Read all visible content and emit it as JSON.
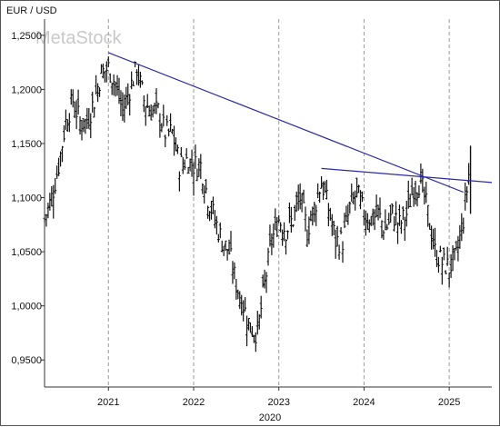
{
  "chart_data": {
    "type": "line",
    "title": "EUR / USD",
    "watermark": "MetaStock",
    "xlabel": "2020",
    "x_ticks": [
      "2021",
      "2022",
      "2023",
      "2024",
      "2025"
    ],
    "y_ticks": [
      "1,2500",
      "1,2000",
      "1,1500",
      "1,1000",
      "1,0500",
      "1,0000",
      "0,9500"
    ],
    "ylim": [
      0.925,
      1.265
    ],
    "xlim": [
      "2020-04",
      "2025-07"
    ],
    "y_grid": false,
    "x_grid": "dashed",
    "series": [
      {
        "style": "ohlc-bars",
        "color": "#111111",
        "values": [
          {
            "x": "2020-04",
            "y": 1.08
          },
          {
            "x": "2020-05",
            "y": 1.1
          },
          {
            "x": "2020-06",
            "y": 1.13
          },
          {
            "x": "2020-07",
            "y": 1.17
          },
          {
            "x": "2020-08",
            "y": 1.19
          },
          {
            "x": "2020-09",
            "y": 1.17
          },
          {
            "x": "2020-10",
            "y": 1.17
          },
          {
            "x": "2020-11",
            "y": 1.19
          },
          {
            "x": "2020-12",
            "y": 1.215
          },
          {
            "x": "2021-01",
            "y": 1.22
          },
          {
            "x": "2021-02",
            "y": 1.205
          },
          {
            "x": "2021-03",
            "y": 1.18
          },
          {
            "x": "2021-04",
            "y": 1.2
          },
          {
            "x": "2021-05",
            "y": 1.22
          },
          {
            "x": "2021-06",
            "y": 1.19
          },
          {
            "x": "2021-07",
            "y": 1.18
          },
          {
            "x": "2021-08",
            "y": 1.18
          },
          {
            "x": "2021-09",
            "y": 1.16
          },
          {
            "x": "2021-10",
            "y": 1.16
          },
          {
            "x": "2021-11",
            "y": 1.13
          },
          {
            "x": "2021-12",
            "y": 1.135
          },
          {
            "x": "2022-01",
            "y": 1.13
          },
          {
            "x": "2022-02",
            "y": 1.13
          },
          {
            "x": "2022-03",
            "y": 1.1
          },
          {
            "x": "2022-04",
            "y": 1.08
          },
          {
            "x": "2022-05",
            "y": 1.06
          },
          {
            "x": "2022-06",
            "y": 1.05
          },
          {
            "x": "2022-07",
            "y": 1.02
          },
          {
            "x": "2022-08",
            "y": 1.0
          },
          {
            "x": "2022-09",
            "y": 0.98
          },
          {
            "x": "2022-10",
            "y": 0.975
          },
          {
            "x": "2022-11",
            "y": 1.02
          },
          {
            "x": "2022-12",
            "y": 1.06
          },
          {
            "x": "2023-01",
            "y": 1.08
          },
          {
            "x": "2023-02",
            "y": 1.07
          },
          {
            "x": "2023-03",
            "y": 1.08
          },
          {
            "x": "2023-04",
            "y": 1.1
          },
          {
            "x": "2023-05",
            "y": 1.07
          },
          {
            "x": "2023-06",
            "y": 1.09
          },
          {
            "x": "2023-07",
            "y": 1.115
          },
          {
            "x": "2023-08",
            "y": 1.09
          },
          {
            "x": "2023-09",
            "y": 1.06
          },
          {
            "x": "2023-10",
            "y": 1.06
          },
          {
            "x": "2023-11",
            "y": 1.09
          },
          {
            "x": "2023-12",
            "y": 1.105
          },
          {
            "x": "2024-01",
            "y": 1.085
          },
          {
            "x": "2024-02",
            "y": 1.08
          },
          {
            "x": "2024-03",
            "y": 1.085
          },
          {
            "x": "2024-04",
            "y": 1.07
          },
          {
            "x": "2024-05",
            "y": 1.085
          },
          {
            "x": "2024-06",
            "y": 1.075
          },
          {
            "x": "2024-07",
            "y": 1.085
          },
          {
            "x": "2024-08",
            "y": 1.11
          },
          {
            "x": "2024-09",
            "y": 1.115
          },
          {
            "x": "2024-10",
            "y": 1.085
          },
          {
            "x": "2024-11",
            "y": 1.05
          },
          {
            "x": "2024-12",
            "y": 1.04
          },
          {
            "x": "2025-01",
            "y": 1.035
          },
          {
            "x": "2025-02",
            "y": 1.045
          },
          {
            "x": "2025-03",
            "y": 1.08
          },
          {
            "x": "2025-04",
            "y": 1.135
          }
        ]
      }
    ],
    "trendlines": [
      {
        "color": "#2a2aa8",
        "start": {
          "x": "2021-01",
          "y": 1.234
        },
        "end": {
          "x": "2025-03",
          "y": 1.105
        }
      },
      {
        "color": "#2a2aa8",
        "start": {
          "x": "2023-07",
          "y": 1.127
        },
        "end": {
          "x": "2025-07",
          "y": 1.114
        }
      }
    ]
  }
}
